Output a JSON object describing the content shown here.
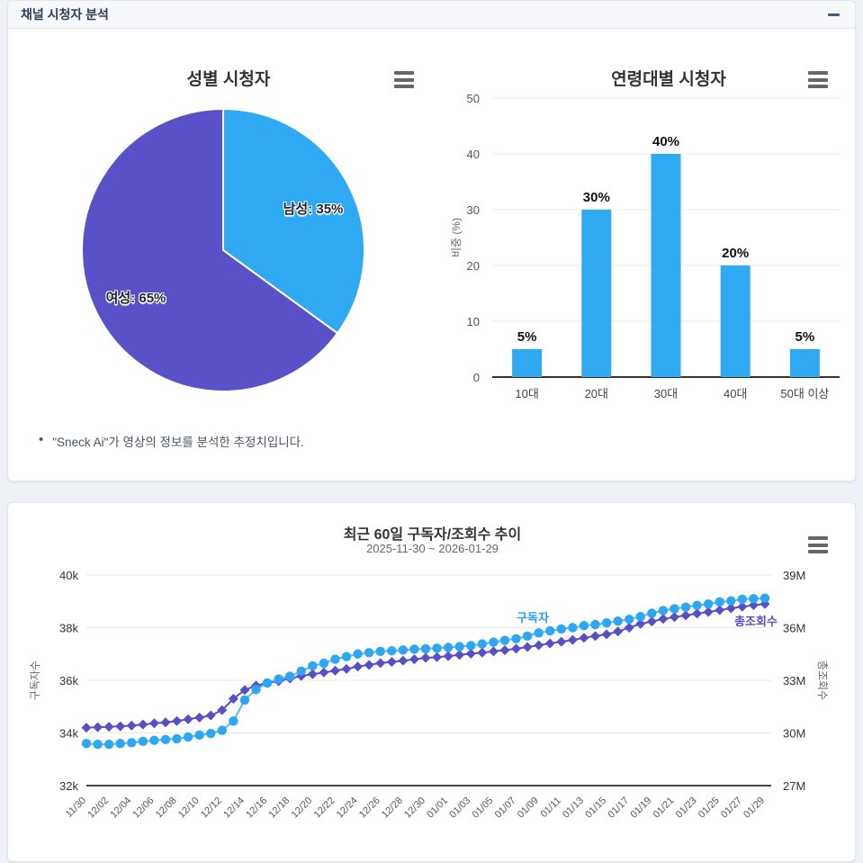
{
  "panel": {
    "title": "채널 시청자 분석"
  },
  "note": {
    "bullet": "•",
    "text": "\"Sneck Ai\"가 영상의 정보를 분석한 추정치입니다."
  },
  "icons": [
    "collapse-minus-icon",
    "menu-hamburger-icon"
  ],
  "colors": {
    "accent_blue": "#2ea9f2",
    "accent_purple": "#584fc6",
    "page_bg": "#edf0f4"
  },
  "chart_data": [
    {
      "type": "pie",
      "title": "성별 시청자",
      "labels": [
        "남성",
        "여성"
      ],
      "values": [
        35,
        65
      ],
      "slice_labels": [
        "남성: 35%",
        "여성: 65%"
      ],
      "colors": [
        "#2ea9f2",
        "#5a50c7"
      ],
      "start_angle_deg": -90,
      "direction": "clockwise"
    },
    {
      "type": "bar",
      "title": "연령대별 시청자",
      "categories": [
        "10대",
        "20대",
        "30대",
        "40대",
        "50대 이상"
      ],
      "values": [
        5,
        30,
        40,
        20,
        5
      ],
      "value_labels": [
        "5%",
        "30%",
        "40%",
        "20%",
        "5%"
      ],
      "ylabel": "비중 (%)",
      "ylim": [
        0,
        50
      ],
      "yticks": [
        0,
        10,
        20,
        30,
        40,
        50
      ],
      "bar_color": "#2ea9f2",
      "grid": true
    },
    {
      "type": "line",
      "title": "최근 60일 구독자/조회수 추이",
      "subtitle": "2025-11-30 ~ 2026-01-29",
      "x": [
        "11/30",
        "12/01",
        "12/02",
        "12/03",
        "12/04",
        "12/05",
        "12/06",
        "12/07",
        "12/08",
        "12/09",
        "12/10",
        "12/11",
        "12/12",
        "12/13",
        "12/14",
        "12/15",
        "12/16",
        "12/17",
        "12/18",
        "12/19",
        "12/20",
        "12/21",
        "12/22",
        "12/23",
        "12/24",
        "12/25",
        "12/26",
        "12/27",
        "12/28",
        "12/29",
        "12/30",
        "12/31",
        "01/01",
        "01/02",
        "01/03",
        "01/04",
        "01/05",
        "01/06",
        "01/07",
        "01/08",
        "01/09",
        "01/10",
        "01/11",
        "01/12",
        "01/13",
        "01/14",
        "01/15",
        "01/16",
        "01/17",
        "01/18",
        "01/19",
        "01/20",
        "01/21",
        "01/22",
        "01/23",
        "01/24",
        "01/25",
        "01/26",
        "01/27",
        "01/28",
        "01/29"
      ],
      "x_tick_step": 2,
      "left_axis": {
        "label": "구독자수",
        "unit": "k",
        "min": 32,
        "max": 40,
        "ticks": [
          "32k",
          "34k",
          "36k",
          "38k",
          "40k"
        ]
      },
      "right_axis": {
        "label": "총조회수",
        "unit": "M",
        "min": 27,
        "max": 39,
        "ticks": [
          "27M",
          "30M",
          "33M",
          "36M",
          "39M"
        ]
      },
      "series": [
        {
          "name": "구독자",
          "axis": "left",
          "marker": "circle",
          "color": "#2da7f2",
          "line_color": "#55b7f5",
          "values": [
            33.6,
            33.57,
            33.57,
            33.6,
            33.63,
            33.68,
            33.72,
            33.75,
            33.78,
            33.85,
            33.92,
            33.98,
            34.1,
            34.45,
            35.25,
            35.65,
            35.9,
            36.05,
            36.15,
            36.35,
            36.55,
            36.65,
            36.8,
            36.9,
            37.0,
            37.05,
            37.1,
            37.12,
            37.15,
            37.18,
            37.2,
            37.22,
            37.25,
            37.28,
            37.32,
            37.38,
            37.45,
            37.52,
            37.58,
            37.68,
            37.8,
            37.88,
            37.95,
            38.0,
            38.08,
            38.12,
            38.18,
            38.25,
            38.32,
            38.42,
            38.55,
            38.65,
            38.72,
            38.78,
            38.85,
            38.9,
            38.98,
            39.02,
            39.08,
            39.1,
            39.12
          ]
        },
        {
          "name": "총조회수",
          "axis": "right",
          "marker": "diamond",
          "color": "#584fc6",
          "line_color": "#584fc6",
          "values": [
            30.3,
            30.33,
            30.35,
            30.38,
            30.42,
            30.48,
            30.55,
            30.6,
            30.68,
            30.78,
            30.88,
            31.0,
            31.3,
            31.95,
            32.45,
            32.7,
            32.85,
            32.95,
            33.1,
            33.25,
            33.35,
            33.45,
            33.55,
            33.65,
            33.78,
            33.88,
            33.98,
            34.05,
            34.12,
            34.2,
            34.28,
            34.32,
            34.38,
            34.45,
            34.52,
            34.58,
            34.65,
            34.72,
            34.8,
            34.9,
            35.0,
            35.1,
            35.2,
            35.3,
            35.42,
            35.52,
            35.62,
            35.78,
            36.0,
            36.22,
            36.35,
            36.5,
            36.6,
            36.7,
            36.8,
            36.9,
            37.0,
            37.1,
            37.2,
            37.28,
            37.35
          ]
        }
      ]
    }
  ]
}
